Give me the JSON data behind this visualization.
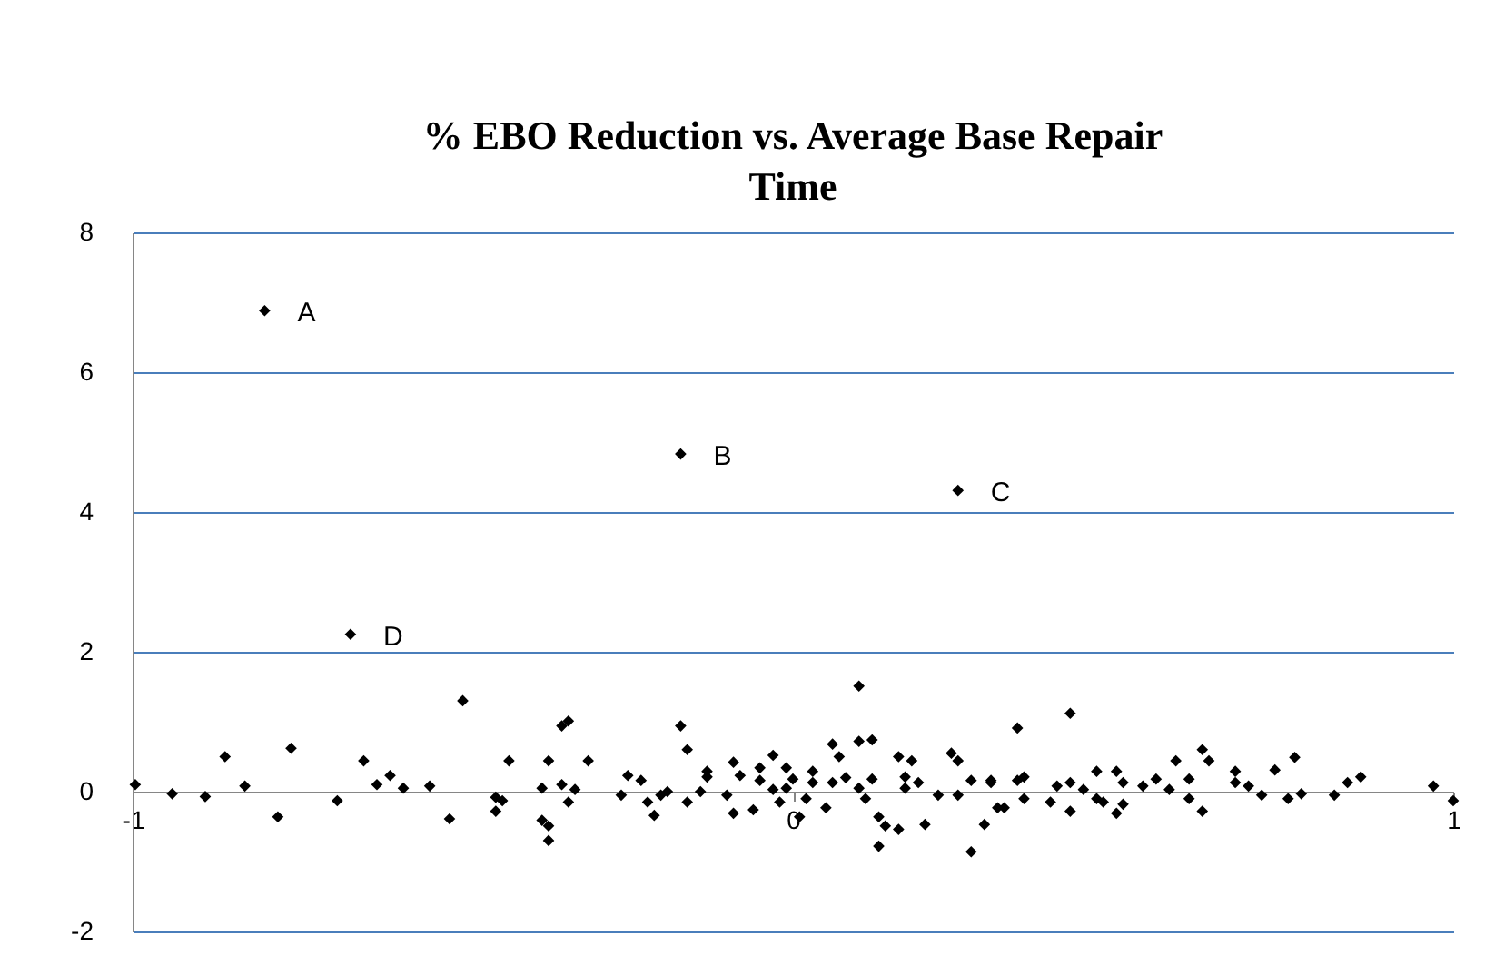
{
  "chart_data": {
    "type": "scatter",
    "title": "% EBO Reduction vs. Average Base Repair Time",
    "x": [
      -0.8,
      -0.17,
      0.25,
      -0.67,
      -0.996,
      -0.94,
      -0.89,
      -0.86,
      -0.83,
      -0.78,
      -0.76,
      -0.69,
      -0.65,
      -0.63,
      -0.61,
      -0.59,
      -0.55,
      -0.52,
      -0.5,
      -0.45,
      -0.45,
      -0.44,
      -0.43,
      -0.38,
      -0.37,
      -0.38,
      -0.37,
      -0.37,
      -0.35,
      -0.35,
      -0.34,
      -0.33,
      -0.34,
      -0.31,
      -0.26,
      -0.25,
      -0.23,
      -0.22,
      -0.21,
      -0.2,
      -0.19,
      -0.17,
      -0.16,
      -0.16,
      -0.13,
      -0.13,
      -0.14,
      -0.1,
      -0.09,
      -0.09,
      -0.08,
      -0.06,
      -0.05,
      -0.05,
      -0.03,
      -0.03,
      -0.02,
      -0.01,
      -0.01,
      0.0,
      0.01,
      0.02,
      0.03,
      0.03,
      0.05,
      0.06,
      0.06,
      0.07,
      0.08,
      0.1,
      0.12,
      0.1,
      0.1,
      0.11,
      0.12,
      0.13,
      0.14,
      0.13,
      0.16,
      0.16,
      0.17,
      0.18,
      0.17,
      0.19,
      0.2,
      0.22,
      0.24,
      0.25,
      0.25,
      0.27,
      0.27,
      0.29,
      0.3,
      0.34,
      0.42,
      0.3,
      0.31,
      0.32,
      0.34,
      0.35,
      0.35,
      0.39,
      0.4,
      0.42,
      0.42,
      0.44,
      0.46,
      0.46,
      0.47,
      0.49,
      0.49,
      0.5,
      0.5,
      0.53,
      0.55,
      0.58,
      0.57,
      0.6,
      0.6,
      0.62,
      0.63,
      0.62,
      0.67,
      0.67,
      0.69,
      0.71,
      0.73,
      0.75,
      0.76,
      0.77,
      0.82,
      0.84,
      0.86,
      0.97,
      1.0
    ],
    "values": [
      6.88,
      4.83,
      4.31,
      2.25,
      0.1,
      -0.03,
      -0.07,
      0.5,
      0.08,
      -0.36,
      0.62,
      -0.13,
      0.44,
      0.1,
      0.23,
      0.05,
      0.08,
      -0.39,
      1.3,
      -0.08,
      -0.28,
      -0.13,
      0.44,
      0.05,
      0.44,
      -0.41,
      -0.7,
      -0.49,
      0.1,
      0.94,
      1.01,
      0.03,
      -0.15,
      0.44,
      -0.05,
      0.23,
      0.16,
      -0.15,
      -0.34,
      -0.05,
      0.0,
      0.94,
      0.6,
      -0.15,
      0.21,
      0.29,
      0.0,
      -0.05,
      0.42,
      -0.31,
      0.23,
      -0.26,
      0.16,
      0.34,
      0.52,
      0.03,
      -0.15,
      0.34,
      0.05,
      0.18,
      -0.36,
      -0.1,
      0.29,
      0.13,
      -0.23,
      0.13,
      0.68,
      0.5,
      0.2,
      0.72,
      0.74,
      1.51,
      0.05,
      -0.1,
      0.18,
      -0.36,
      -0.49,
      -0.78,
      -0.54,
      0.5,
      0.21,
      0.44,
      0.05,
      0.13,
      -0.47,
      -0.05,
      0.55,
      0.44,
      -0.05,
      -0.86,
      0.16,
      -0.47,
      0.16,
      0.91,
      1.12,
      0.13,
      -0.23,
      -0.23,
      0.16,
      0.21,
      -0.1,
      -0.15,
      0.08,
      -0.28,
      0.13,
      0.03,
      0.29,
      -0.1,
      -0.15,
      -0.31,
      0.29,
      0.13,
      -0.18,
      0.08,
      0.18,
      0.44,
      0.03,
      -0.1,
      0.18,
      0.6,
      0.44,
      -0.28,
      0.29,
      0.13,
      0.08,
      -0.05,
      0.31,
      -0.1,
      0.49,
      -0.03,
      -0.05,
      0.13,
      0.21,
      0.08,
      -0.13
    ],
    "color": "#000000",
    "marker": "diamond",
    "xlim": [
      -1,
      1
    ],
    "xticks": [
      -1,
      0,
      1
    ],
    "ylim": [
      -2,
      8
    ],
    "yticks": [
      -2,
      0,
      2,
      4,
      6,
      8
    ],
    "grid": "y",
    "annotations": [
      {
        "text": "A",
        "x": -0.8,
        "y": 6.88
      },
      {
        "text": "B",
        "x": -0.17,
        "y": 4.83
      },
      {
        "text": "C",
        "x": 0.25,
        "y": 4.31
      },
      {
        "text": "D",
        "x": -0.67,
        "y": 2.25
      }
    ]
  }
}
